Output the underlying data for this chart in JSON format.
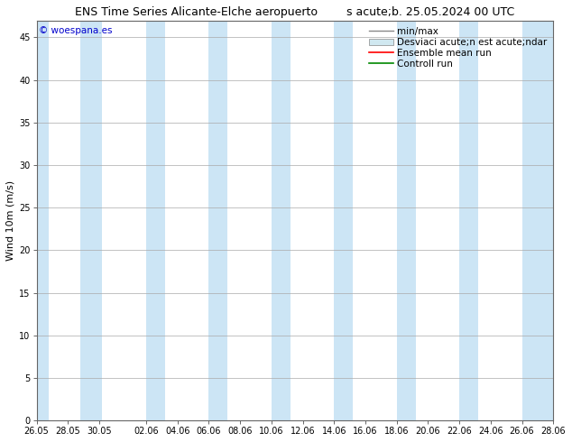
{
  "title": "ENS Time Series Alicante-Elche aeropuerto",
  "subtitle": "s´b. 25.05.2024 00 UTC",
  "subtitle_raw": "s acute;b. 25.05.2024 00 UTC",
  "ylabel": "Wind 10m (m/s)",
  "copyright": "© woespana.es",
  "ylim": [
    0,
    47
  ],
  "yticks": [
    0,
    5,
    10,
    15,
    20,
    25,
    30,
    35,
    40,
    45
  ],
  "x_start_num": 0,
  "x_end_num": 33,
  "xtick_labels": [
    "26.05",
    "28.05",
    "30.05",
    "02.06",
    "04.06",
    "06.06",
    "08.06",
    "10.06",
    "12.06",
    "14.06",
    "16.06",
    "18.06",
    "20.06",
    "22.06",
    "24.06",
    "26.06",
    "28.06"
  ],
  "xtick_positions": [
    0,
    2,
    4,
    7,
    9,
    11,
    13,
    15,
    17,
    19,
    21,
    23,
    25,
    27,
    29,
    31,
    33
  ],
  "shade_bands": [
    [
      0.0,
      0.8
    ],
    [
      2.8,
      4.2
    ],
    [
      7.0,
      8.2
    ],
    [
      11.0,
      12.2
    ],
    [
      15.0,
      16.2
    ],
    [
      19.0,
      20.2
    ],
    [
      23.0,
      24.2
    ],
    [
      27.0,
      28.2
    ],
    [
      31.0,
      33.0
    ]
  ],
  "shade_color": "#cce5f5",
  "bg_color": "#ffffff",
  "plot_bg_color": "#ffffff",
  "grid_color": "#aaaaaa",
  "ensemble_mean_color": "#ff0000",
  "control_run_color": "#008800",
  "minmax_color": "#888888",
  "std_fill_color": "#d0e8f0",
  "title_fontsize": 9,
  "tick_fontsize": 7,
  "ylabel_fontsize": 8,
  "legend_fontsize": 7.5,
  "copyright_fontsize": 7.5,
  "copyright_color": "#0000cc"
}
